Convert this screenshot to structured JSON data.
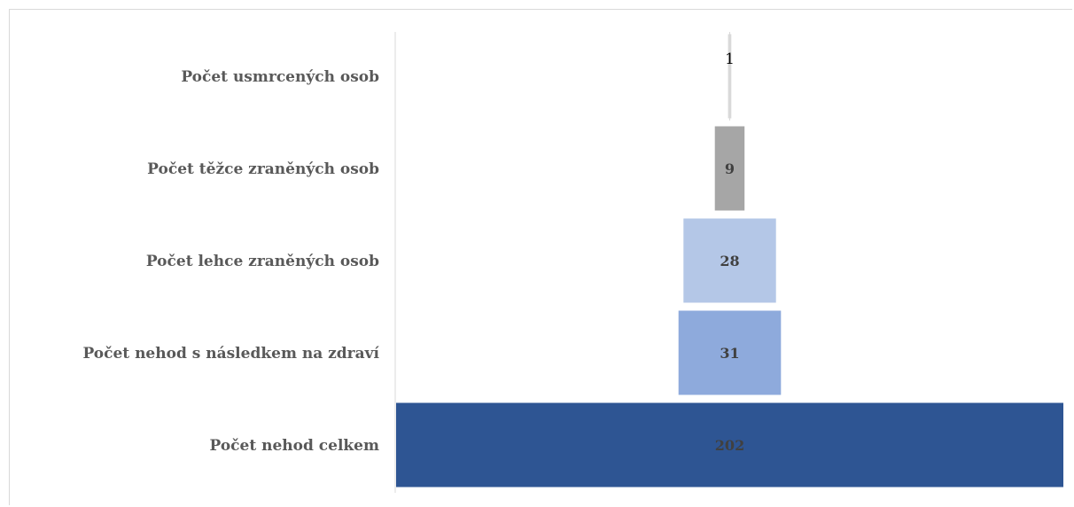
{
  "chart_data": {
    "type": "bar",
    "orientation": "horizontal-funnel",
    "title": "",
    "xlabel": "",
    "ylabel": "",
    "categories": [
      "Počet nehod celkem",
      "Počet nehod s následkem na zdraví",
      "Počet lehce zraněných osob",
      "Počet těžce zraněných osob",
      "Počet usmrcených osob"
    ],
    "values": [
      202,
      31,
      28,
      9,
      1
    ],
    "value_labels": [
      "202",
      "31",
      "28",
      "9",
      "1"
    ],
    "colors": [
      "#2e5593",
      "#8eaadc",
      "#b4c7e7",
      "#a6a6a6",
      "#d9d9d9"
    ],
    "xlim": [
      0,
      202
    ],
    "grid": false,
    "legend": "none"
  }
}
